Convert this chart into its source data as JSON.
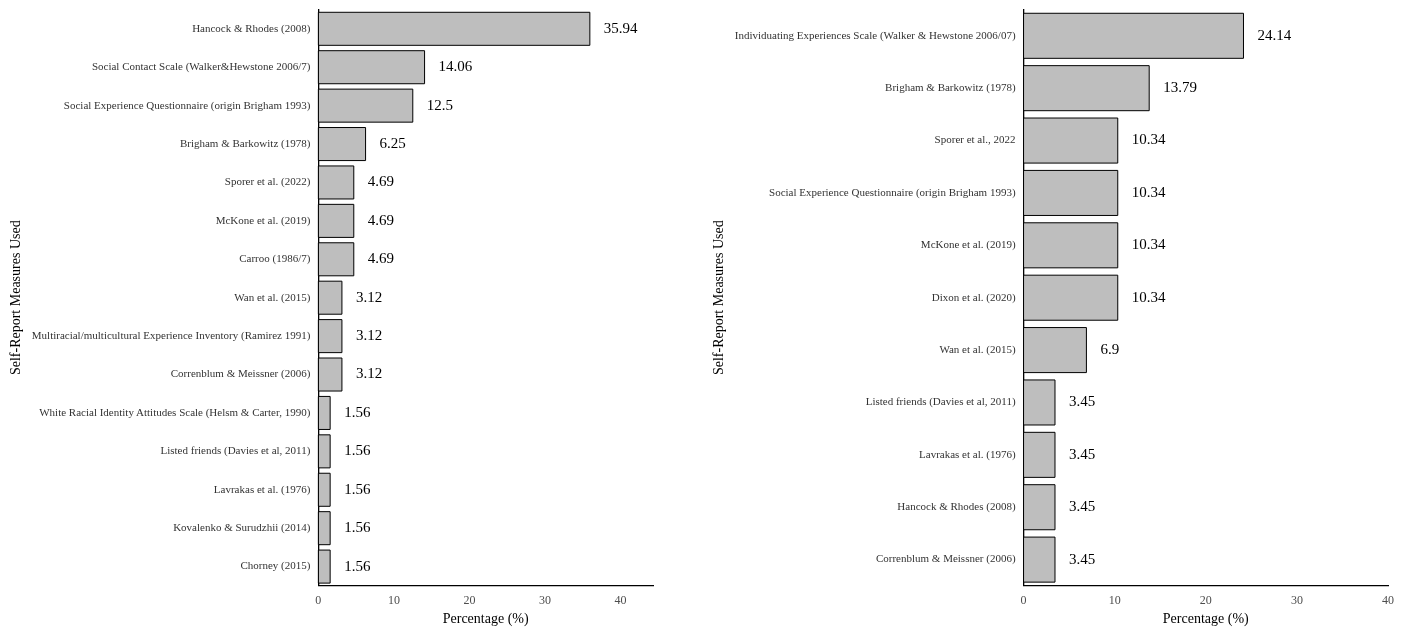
{
  "chart_data": [
    {
      "type": "bar",
      "orientation": "horizontal",
      "xlabel": "Percentage (%)",
      "ylabel": "Self-Report Measures Used",
      "categories": [
        "Hancock & Rhodes (2008)",
        "Social Contact Scale (Walker&Hewstone 2006/7)",
        "Social Experience Questionnaire (origin Brigham 1993)",
        "Brigham & Barkowitz (1978)",
        "Sporer et al. (2022)",
        "McKone et al. (2019)",
        "Carroo (1986/7)",
        "Wan et al. (2015)",
        "Multiracial/multicultural Experience Inventory (Ramirez 1991)",
        "Correnblum & Meissner (2006)",
        "White Racial Identity Attitudes Scale (Helsm & Carter, 1990)",
        "Listed friends (Davies et al, 2011)",
        "Lavrakas et al. (1976)",
        "Kovalenko & Surudzhii (2014)",
        "Chorney (2015)"
      ],
      "values": [
        35.94,
        14.06,
        12.5,
        6.25,
        4.69,
        4.69,
        4.69,
        3.12,
        3.12,
        3.12,
        1.56,
        1.56,
        1.56,
        1.56,
        1.56
      ],
      "color": "#bebebe",
      "data_labels": true,
      "xlim": [
        0,
        44.3
      ],
      "xticks": [
        0,
        10,
        20,
        30,
        40
      ],
      "grid": false
    },
    {
      "type": "bar",
      "orientation": "horizontal",
      "xlabel": "Percentage (%)",
      "ylabel": "Self-Report Measures Used",
      "categories": [
        "Individuating Experiences Scale (Walker & Hewstone 2006/07)",
        "Brigham & Barkowitz (1978)",
        "Sporer et al., 2022",
        "Social Experience Questionnaire (origin Brigham 1993)",
        "McKone et al. (2019)",
        "Dixon et al. (2020)",
        "Wan et al. (2015)",
        "Listed friends (Davies et al, 2011)",
        "Lavrakas et al. (1976)",
        "Hancock & Rhodes (2008)",
        "Correnblum & Meissner (2006)"
      ],
      "values": [
        24.14,
        13.79,
        10.34,
        10.34,
        10.34,
        10.34,
        6.9,
        3.45,
        3.45,
        3.45,
        3.45
      ],
      "color": "#bebebe",
      "data_labels": true,
      "xlim": [
        0,
        40
      ],
      "xticks": [
        0,
        10,
        20,
        30,
        40
      ],
      "grid": false
    }
  ]
}
